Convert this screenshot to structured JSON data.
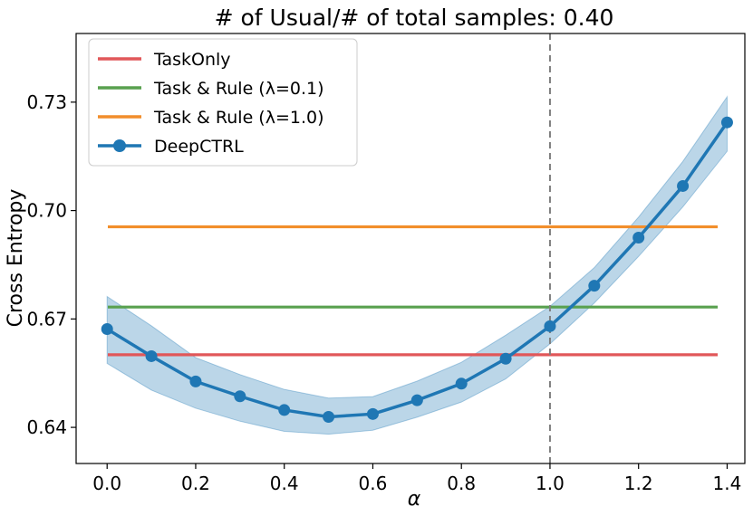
{
  "chart_data": {
    "type": "line",
    "title": "# of Usual/# of total samples: 0.40",
    "xlabel": "α",
    "ylabel": "Cross Entropy",
    "xlim": [
      -0.07,
      1.44
    ],
    "ylim": [
      0.63,
      0.749
    ],
    "xticks": [
      0.0,
      0.2,
      0.4,
      0.6,
      0.8,
      1.0,
      1.2,
      1.4
    ],
    "xtick_labels": [
      "0.0",
      "0.2",
      "0.4",
      "0.6",
      "0.8",
      "1.0",
      "1.2",
      "1.4"
    ],
    "yticks": [
      0.64,
      0.67,
      0.7,
      0.73
    ],
    "ytick_labels": [
      "0.64",
      "0.67",
      "0.70",
      "0.73"
    ],
    "grid": false,
    "legend_position": "top-left",
    "vline": {
      "x": 1.0,
      "style": "dashed",
      "color": "#7f7f7f"
    },
    "series": [
      {
        "name": "TaskOnly",
        "kind": "hline",
        "y": 0.6601,
        "color": "#e15759"
      },
      {
        "name": "Task & Rule (λ=0.1)",
        "kind": "hline",
        "y": 0.6733,
        "color": "#59a14f"
      },
      {
        "name": "Task & Rule (λ=1.0)",
        "kind": "hline",
        "y": 0.6955,
        "color": "#f28e2b"
      },
      {
        "name": "DeepCTRL",
        "kind": "line-markers",
        "color": "#1f77b4",
        "band_color": "#1f77b4",
        "x": [
          0.0,
          0.1,
          0.2,
          0.3,
          0.4,
          0.5,
          0.6,
          0.7,
          0.8,
          0.9,
          1.0,
          1.1,
          1.2,
          1.3,
          1.4
        ],
        "y": [
          0.6672,
          0.6597,
          0.6527,
          0.6486,
          0.6448,
          0.6429,
          0.6437,
          0.6475,
          0.6521,
          0.659,
          0.668,
          0.6792,
          0.6925,
          0.7068,
          0.7244
        ],
        "lower": [
          0.6577,
          0.6503,
          0.6453,
          0.6417,
          0.6389,
          0.6381,
          0.6392,
          0.6428,
          0.647,
          0.6534,
          0.6631,
          0.6744,
          0.6873,
          0.701,
          0.7164
        ],
        "upper": [
          0.6762,
          0.6681,
          0.6593,
          0.6546,
          0.6505,
          0.6481,
          0.6485,
          0.6528,
          0.658,
          0.6655,
          0.6735,
          0.6842,
          0.6982,
          0.7136,
          0.7315
        ]
      }
    ]
  }
}
